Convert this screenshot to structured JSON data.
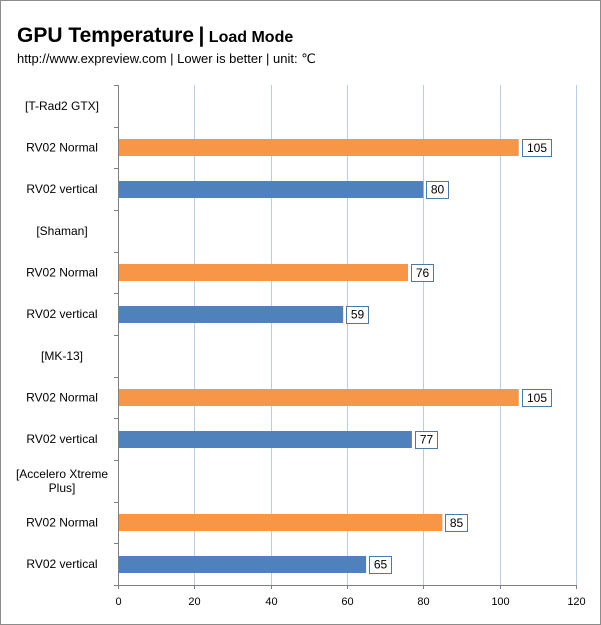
{
  "header": {
    "title": "GPU Temperature",
    "separator": "|",
    "mode": "Load Mode",
    "subtitle": "http://www.expreview.com | Lower is better | unit: ℃"
  },
  "colors": {
    "orange": "#f79646",
    "blue": "#4f81bd",
    "grid": "#b9cde5",
    "axis": "#808080",
    "label_border": "#4a7ba7"
  },
  "chart_data": {
    "type": "bar",
    "orientation": "horizontal",
    "title": "GPU Temperature",
    "subtitle": "http://www.expreview.com | Lower is better | unit: ℃",
    "xlim": [
      0,
      120
    ],
    "xticks": [
      0,
      20,
      40,
      60,
      80,
      100,
      120
    ],
    "grid": true,
    "categories": [
      "[T-Rad2 GTX]",
      "RV02 Normal",
      "RV02 vertical",
      "[Shaman]",
      "RV02 Normal",
      "RV02 vertical",
      "[MK-13]",
      "RV02 Normal",
      "RV02 vertical",
      "[Accelero Xtreme Plus]",
      "RV02 Normal",
      "RV02 vertical"
    ],
    "values": [
      null,
      105,
      80,
      null,
      76,
      59,
      null,
      105,
      77,
      null,
      85,
      65
    ],
    "bar_colors": [
      null,
      "orange",
      "blue",
      null,
      "orange",
      "blue",
      null,
      "orange",
      "blue",
      null,
      "orange",
      "blue"
    ]
  }
}
